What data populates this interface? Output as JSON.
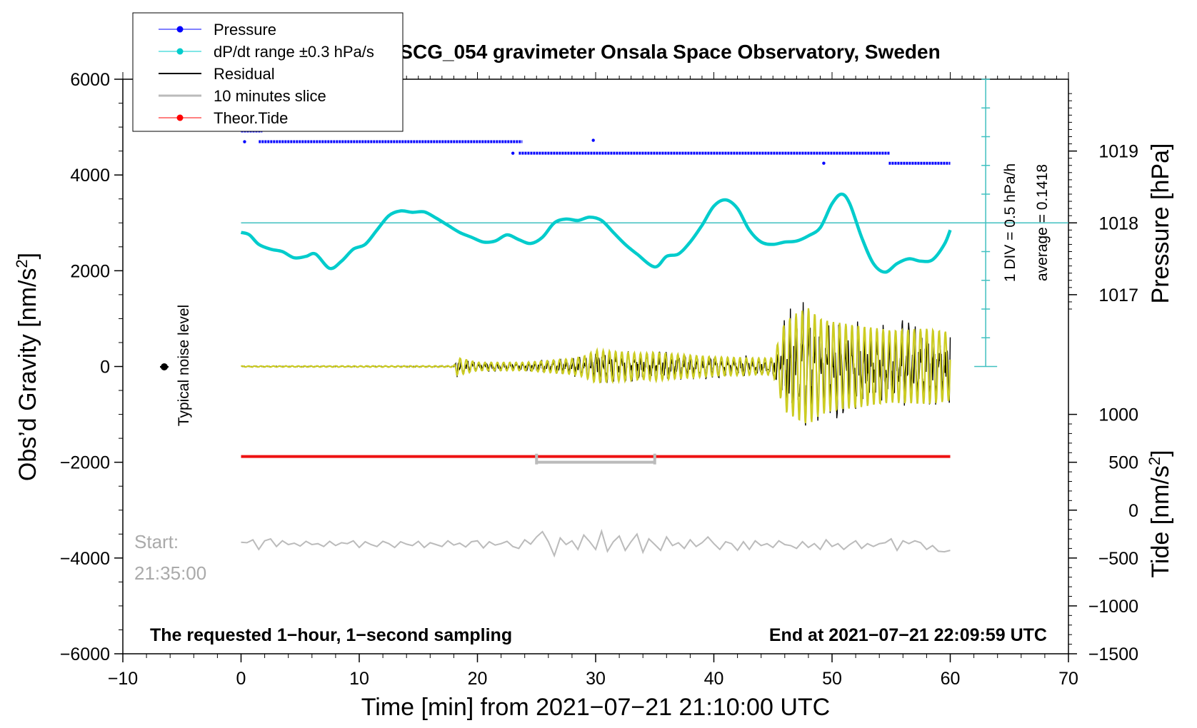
{
  "chart_data": {
    "type": "line",
    "title": "SCG_054 gravimeter Onsala Space Observatory, Sweden",
    "xlabel": "Time [min] from 2021−07−21 21:10:00 UTC",
    "ylabel_left": "Obs’d Gravity [nm/s²]",
    "ylabel_right_pressure": "Pressure [hPa]",
    "ylabel_right_tide": "Tide [nm/s²]",
    "xlim": [
      -10,
      70
    ],
    "ylim": [
      -6000,
      6000
    ],
    "x_ticks": [
      -10,
      0,
      10,
      20,
      30,
      40,
      50,
      60,
      70
    ],
    "x_tick_labels": [
      "−10",
      "0",
      "10",
      "20",
      "30",
      "40",
      "50",
      "60",
      "70"
    ],
    "y_ticks": [
      -6000,
      -4000,
      -2000,
      0,
      2000,
      4000,
      6000
    ],
    "y_tick_labels": [
      "−6000",
      "−4000",
      "−2000",
      "0",
      "2000",
      "4000",
      "6000"
    ],
    "pressure_axis": {
      "label": "Pressure [hPa]",
      "ticks": [
        1017,
        1018,
        1019
      ],
      "tick_labels": [
        "1017",
        "1018",
        "1019"
      ],
      "gravity_at_1018": 3000,
      "gravity_per_hPa": 1500
    },
    "tide_axis": {
      "label": "Tide [nm/s²]",
      "ticks": [
        -1500,
        -1000,
        -500,
        0,
        500,
        1000
      ],
      "tick_labels": [
        "−1500",
        "−1000",
        "−500",
        "0",
        "500",
        "1000"
      ],
      "gravity_at_0": -3000,
      "gravity_per_unit": 2
    },
    "legend": {
      "placement": "top-left",
      "entries": [
        {
          "label": "Pressure",
          "color": "#0000ff",
          "marker": true
        },
        {
          "label": "dP/dt range ±0.3 hPa/s",
          "color": "#00cccc",
          "marker": true
        },
        {
          "label": "Residual",
          "color": "#000000",
          "marker": false
        },
        {
          "label": "10 minutes slice",
          "color": "#bbbbbb",
          "marker": false
        },
        {
          "label": "Theor.Tide",
          "color": "#ff0000",
          "marker": true
        }
      ]
    },
    "annotations": {
      "noise_label": "Typical noise level",
      "div_label": "1 DIV = 0.5 hPa/h",
      "average_label": "average = 0.1418",
      "start_label": "Start:",
      "start_time": "21:35:00",
      "footer_left": "The requested 1−hour, 1−second sampling",
      "footer_right": "End at 2021−07−21 22:09:59 UTC"
    },
    "dpdt_reference": {
      "y": 3000,
      "scale_x": 63.0,
      "scale_y0": 0,
      "scale_y1": 6000,
      "divisions": 10
    },
    "pressure_segments": [
      {
        "x0": 0.0,
        "x1": 1.8,
        "hPa": 1019.28
      },
      {
        "x0": 1.5,
        "x1": 23.8,
        "hPa": 1019.13
      },
      {
        "x0": 23.5,
        "x1": 54.9,
        "hPa": 1018.97
      },
      {
        "x0": 54.8,
        "x1": 60.0,
        "hPa": 1018.83
      }
    ],
    "pressure_outliers": [
      {
        "x": 0.3,
        "hPa": 1019.13
      },
      {
        "x": 23.0,
        "hPa": 1018.97
      },
      {
        "x": 29.8,
        "hPa": 1019.15
      },
      {
        "x": 49.3,
        "hPa": 1018.83
      }
    ],
    "dpdt_series": {
      "x": [
        0,
        0.7,
        1.5,
        2.5,
        3.5,
        4.5,
        5.5,
        6.3,
        7.5,
        8.5,
        9.5,
        10.5,
        11.5,
        12.5,
        13.5,
        14.5,
        15.5,
        16.5,
        17.5,
        18.5,
        19.5,
        20.5,
        21.5,
        22.5,
        23.5,
        24.5,
        25.5,
        26.5,
        27.5,
        28.5,
        29.5,
        30.5,
        31.5,
        32.5,
        33.5,
        35.0,
        36.0,
        37.0,
        38.0,
        39.0,
        40.0,
        41.0,
        42.0,
        43.0,
        44.0,
        45.0,
        46.0,
        47.0,
        48.0,
        49.0,
        50.0,
        50.8,
        51.5,
        52.5,
        53.5,
        54.5,
        55.5,
        56.5,
        57.5,
        58.5,
        59.5,
        60.0
      ],
      "y": [
        2800,
        2750,
        2550,
        2450,
        2400,
        2270,
        2300,
        2350,
        2050,
        2200,
        2450,
        2550,
        2850,
        3150,
        3250,
        3220,
        3230,
        3100,
        2950,
        2800,
        2700,
        2600,
        2620,
        2750,
        2650,
        2570,
        2700,
        3000,
        3080,
        3050,
        3120,
        3050,
        2800,
        2550,
        2350,
        2080,
        2300,
        2350,
        2600,
        2950,
        3350,
        3480,
        3300,
        2850,
        2600,
        2550,
        2600,
        2620,
        2730,
        2900,
        3400,
        3600,
        3400,
        2700,
        2150,
        1970,
        2150,
        2250,
        2200,
        2230,
        2550,
        2850
      ]
    },
    "theor_tide": {
      "x": [
        0,
        60
      ],
      "tide": [
        560,
        560
      ]
    },
    "slice_bracket": {
      "x0": 25,
      "x1": 35,
      "y": -2000
    },
    "residual_envelope": {
      "x": [
        0,
        18,
        18.3,
        20,
        24,
        28,
        29,
        30,
        34,
        35,
        36,
        40,
        44,
        45,
        46,
        47,
        48,
        49,
        50,
        52,
        55,
        58,
        60
      ],
      "amp": [
        15,
        20,
        260,
        120,
        120,
        230,
        300,
        480,
        380,
        420,
        380,
        280,
        240,
        250,
        1300,
        1550,
        1700,
        1400,
        1300,
        1200,
        1050,
        1100,
        1000
      ]
    },
    "slice_trace": {
      "x": [
        0.0,
        0.5,
        1.0,
        1.5,
        2.0,
        2.5,
        3.0,
        3.5,
        4.0,
        4.5,
        5.0,
        5.5,
        6.0,
        6.5,
        7.0,
        7.5,
        8.0,
        8.5,
        9.0,
        9.5,
        10.0,
        10.5,
        11.0,
        11.5,
        12.0,
        12.5,
        13.0,
        13.5,
        14.0,
        14.5,
        15.0,
        15.5,
        16.0,
        16.5,
        17.0,
        17.5,
        18.0,
        18.5,
        19.0,
        19.5,
        20.0,
        20.5,
        21.0,
        21.5,
        22.0,
        22.5,
        23.0,
        23.5,
        24.0,
        24.5,
        25.0,
        25.5,
        26.0,
        26.5,
        27.0,
        27.5,
        28.0,
        28.5,
        29.0,
        29.5,
        30.0,
        30.5,
        31.0,
        31.5,
        32.0,
        32.5,
        33.0,
        33.5,
        34.0,
        34.5,
        35.0,
        35.5,
        36.0,
        36.5,
        37.0,
        37.5,
        38.0,
        38.5,
        39.0,
        39.5,
        40.0,
        40.5,
        41.0,
        41.5,
        42.0,
        42.5,
        43.0,
        43.5,
        44.0,
        44.5,
        45.0,
        45.5,
        46.0,
        46.5,
        47.0,
        47.5,
        48.0,
        48.5,
        49.0,
        49.5,
        50.0,
        50.5,
        51.0,
        51.5,
        52.0,
        52.5,
        53.0,
        53.5,
        54.0,
        54.5,
        55.0,
        55.5,
        56.0,
        56.5,
        57.0,
        57.5,
        58.0,
        58.5,
        59.0,
        59.5,
        60.0
      ],
      "y": [
        -3670,
        -3680,
        -3620,
        -3820,
        -3640,
        -3600,
        -3760,
        -3640,
        -3720,
        -3690,
        -3750,
        -3650,
        -3720,
        -3700,
        -3760,
        -3650,
        -3740,
        -3680,
        -3700,
        -3640,
        -3780,
        -3660,
        -3720,
        -3760,
        -3650,
        -3700,
        -3780,
        -3660,
        -3710,
        -3740,
        -3650,
        -3780,
        -3680,
        -3720,
        -3760,
        -3640,
        -3730,
        -3690,
        -3770,
        -3660,
        -3640,
        -3790,
        -3660,
        -3730,
        -3700,
        -3650,
        -3760,
        -3800,
        -3620,
        -3710,
        -3560,
        -3450,
        -3660,
        -3950,
        -3580,
        -3720,
        -3640,
        -3820,
        -3520,
        -3660,
        -3820,
        -3440,
        -3860,
        -3660,
        -3540,
        -3840,
        -3660,
        -3500,
        -3880,
        -3600,
        -3720,
        -3840,
        -3560,
        -3740,
        -3680,
        -3800,
        -3620,
        -3760,
        -3680,
        -3560,
        -3700,
        -3820,
        -3660,
        -3700,
        -3840,
        -3660,
        -3820,
        -3640,
        -3740,
        -3700,
        -3780,
        -3640,
        -3720,
        -3740,
        -3800,
        -3660,
        -3780,
        -3700,
        -3820,
        -3620,
        -3760,
        -3700,
        -3820,
        -3720,
        -3640,
        -3800,
        -3700,
        -3760,
        -3700,
        -3680,
        -3600,
        -3840,
        -3640,
        -3700,
        -3640,
        -3680,
        -3820,
        -3740,
        -3860,
        -3870,
        -3840
      ]
    }
  }
}
